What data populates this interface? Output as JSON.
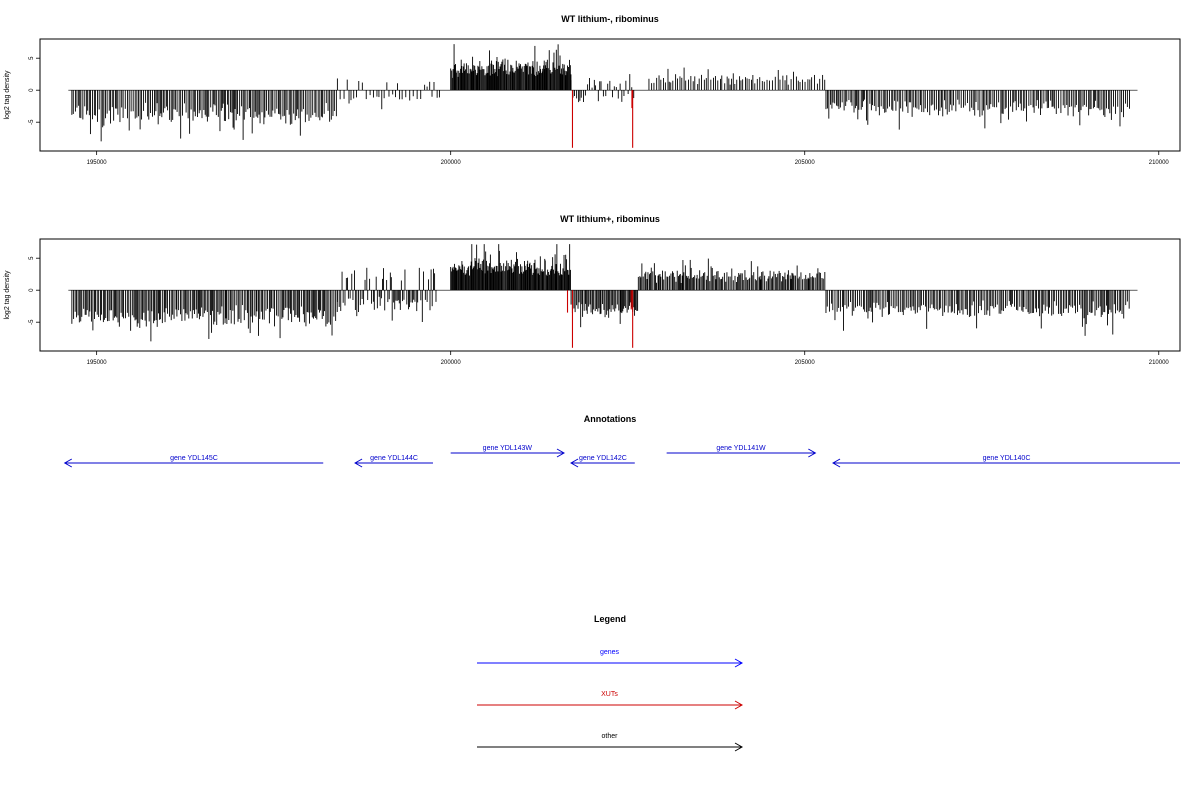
{
  "chart_data": [
    {
      "type": "bar",
      "title": "WT lithium-, ribominus",
      "xlabel": "",
      "ylabel": "log2 tag density",
      "xlim": [
        194200,
        210300
      ],
      "ylim": [
        -9.5,
        8
      ],
      "xticks": [
        195000,
        200000,
        205000,
        210000
      ],
      "yticks": [
        -5,
        0,
        5
      ],
      "grid": false,
      "regions": [
        {
          "x0": 194650,
          "x1": 198400,
          "mode": "neg",
          "base": 4.2,
          "amp": 2.4,
          "spike": 0.12,
          "step": 22
        },
        {
          "x0": 198400,
          "x1": 199850,
          "mode": "mixed",
          "base": 1.2,
          "amp": 1.6,
          "spike": 0.1,
          "step": 40
        },
        {
          "x0": 200000,
          "x1": 201700,
          "mode": "pos",
          "base": 3.6,
          "amp": 2.2,
          "spike": 0.1,
          "step": 11
        },
        {
          "x0": 201700,
          "x1": 202600,
          "mode": "mixed",
          "base": 0.9,
          "amp": 2.6,
          "spike": 0.1,
          "step": 28
        },
        {
          "x0": 202800,
          "x1": 205300,
          "mode": "pos",
          "base": 1.6,
          "amp": 1.6,
          "spike": 0.12,
          "step": 30
        },
        {
          "x0": 205300,
          "x1": 209600,
          "mode": "neg",
          "base": 2.9,
          "amp": 2.2,
          "spike": 0.1,
          "step": 24
        }
      ],
      "red_bars": [
        {
          "x": 201720,
          "y": -9.0
        },
        {
          "x": 202570,
          "y": -9.0
        },
        {
          "x": 202560,
          "y": -2.8
        }
      ],
      "bar_color": "#000000",
      "red_color": "#cc0000"
    },
    {
      "type": "bar",
      "title": "WT lithium+, ribominus",
      "xlabel": "",
      "ylabel": "log2 tag density",
      "xlim": [
        194200,
        210300
      ],
      "ylim": [
        -9.5,
        8
      ],
      "xticks": [
        195000,
        200000,
        205000,
        210000
      ],
      "yticks": [
        -5,
        0,
        5
      ],
      "grid": false,
      "regions": [
        {
          "x0": 194650,
          "x1": 198400,
          "mode": "neg",
          "base": 4.6,
          "amp": 2.6,
          "spike": 0.12,
          "step": 20
        },
        {
          "x0": 198400,
          "x1": 199800,
          "mode": "mixed",
          "base": 2.6,
          "amp": 2.0,
          "spike": 0.1,
          "step": 20
        },
        {
          "x0": 200000,
          "x1": 201700,
          "mode": "pos",
          "base": 3.8,
          "amp": 2.2,
          "spike": 0.1,
          "step": 11
        },
        {
          "x0": 201700,
          "x1": 202650,
          "mode": "neg",
          "base": 3.0,
          "amp": 2.6,
          "spike": 0.1,
          "step": 16
        },
        {
          "x0": 202650,
          "x1": 205300,
          "mode": "pos",
          "base": 2.2,
          "amp": 1.8,
          "spike": 0.12,
          "step": 18
        },
        {
          "x0": 205300,
          "x1": 209600,
          "mode": "neg",
          "base": 3.2,
          "amp": 2.4,
          "spike": 0.1,
          "step": 22
        }
      ],
      "red_bars": [
        {
          "x": 201720,
          "y": -9.0
        },
        {
          "x": 202570,
          "y": -9.0
        },
        {
          "x": 201650,
          "y": -3.5
        },
        {
          "x": 202550,
          "y": -3.0
        }
      ],
      "bar_color": "#000000",
      "red_color": "#cc0000"
    }
  ],
  "annotations": {
    "title": "Annotations",
    "genes": [
      {
        "label": "gene YDL145C",
        "strand": "-",
        "start": 194550,
        "end": 198200,
        "row": "lower"
      },
      {
        "label": "gene YDL144C",
        "strand": "-",
        "start": 198650,
        "end": 199750,
        "row": "lower"
      },
      {
        "label": "gene YDL143W",
        "strand": "+",
        "start": 200000,
        "end": 201600,
        "row": "upper"
      },
      {
        "label": "gene YDL142C",
        "strand": "-",
        "start": 201700,
        "end": 202600,
        "row": "lower"
      },
      {
        "label": "gene YDL141W",
        "strand": "+",
        "start": 203050,
        "end": 205150,
        "row": "upper"
      },
      {
        "label": "gene YDL140C",
        "strand": "-",
        "start": 205400,
        "end": 210300,
        "row": "lower"
      }
    ],
    "color": "#0000cc"
  },
  "legend": {
    "title": "Legend",
    "items": [
      {
        "label": "genes",
        "color": "#0000ff"
      },
      {
        "label": "XUTs",
        "color": "#cc0000"
      },
      {
        "label": "other",
        "color": "#000000"
      }
    ]
  }
}
